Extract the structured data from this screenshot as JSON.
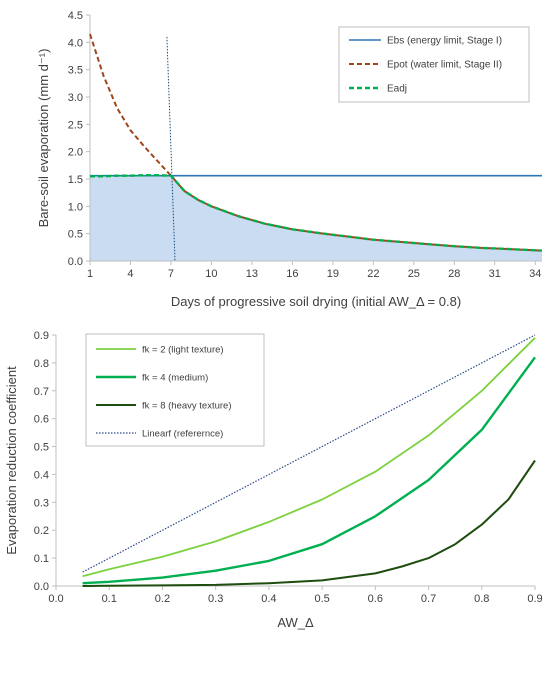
{
  "chart_data": [
    {
      "type": "line",
      "xlabel": "Days of progressive soil drying (initial AW_Δ = 0.8)",
      "ylabel": "Bare-soil evaporation (mm d⁻¹)",
      "xlim": [
        1,
        34.5
      ],
      "ylim": [
        0,
        4.5
      ],
      "x_ticks": [
        1,
        4,
        7,
        10,
        13,
        16,
        19,
        22,
        25,
        28,
        31,
        34
      ],
      "y_ticks": [
        0.0,
        0.5,
        1.0,
        1.5,
        2.0,
        2.5,
        3.0,
        3.5,
        4.0,
        4.5
      ],
      "legend_position": "top-right",
      "grid": false,
      "series": [
        {
          "name": "Ebs (energy limit, Stage I)",
          "color": "#2e75b6",
          "style": "solid",
          "x": [
            1,
            34.5
          ],
          "y": [
            1.56,
            1.56
          ]
        },
        {
          "name": "Epot (water limit, Stage II)",
          "color": "#a0461c",
          "style": "dashed",
          "x": [
            1,
            2,
            3,
            4,
            5,
            6,
            7,
            8,
            9,
            10,
            12,
            14,
            16,
            18,
            20,
            22,
            24,
            26,
            28,
            30,
            32,
            34.5
          ],
          "y": [
            4.15,
            3.39,
            2.8,
            2.39,
            2.1,
            1.83,
            1.56,
            1.28,
            1.12,
            1.0,
            0.82,
            0.68,
            0.58,
            0.51,
            0.45,
            0.39,
            0.35,
            0.31,
            0.27,
            0.24,
            0.22,
            0.19
          ]
        },
        {
          "name": "Eadj",
          "color": "#00b050",
          "style": "dashed",
          "x": [
            1,
            2,
            3,
            4,
            5,
            6,
            7,
            8,
            9,
            10,
            12,
            14,
            16,
            18,
            20,
            22,
            24,
            26,
            28,
            30,
            32,
            34.5
          ],
          "y": [
            1.55,
            1.55,
            1.56,
            1.56,
            1.57,
            1.57,
            1.56,
            1.28,
            1.12,
            1.0,
            0.82,
            0.68,
            0.58,
            0.51,
            0.45,
            0.39,
            0.35,
            0.31,
            0.27,
            0.24,
            0.22,
            0.19
          ]
        }
      ],
      "vertical_marker": {
        "x_top": 6.7,
        "x_bottom": 7.3,
        "y_top": 4.1,
        "color": "#1f4e79",
        "style": "dotted"
      },
      "shaded_area": {
        "under": "Eadj",
        "color": "#c9dcf2"
      }
    },
    {
      "type": "line",
      "xlabel": "AW_Δ",
      "ylabel": "Evaporation reduction coefficient",
      "xlim": [
        0,
        0.9
      ],
      "ylim": [
        0,
        0.9
      ],
      "x_ticks": [
        0,
        0.1,
        0.2,
        0.3,
        0.4,
        0.5,
        0.6,
        0.7,
        0.8,
        0.9
      ],
      "y_ticks": [
        0.0,
        0.1,
        0.2,
        0.3,
        0.4,
        0.5,
        0.6,
        0.7,
        0.8,
        0.9
      ],
      "legend_position": "top-left",
      "grid": false,
      "series": [
        {
          "name": "fk = 2 (light texture)",
          "color": "#7dd13f",
          "style": "solid",
          "x": [
            0.05,
            0.1,
            0.2,
            0.3,
            0.4,
            0.5,
            0.6,
            0.7,
            0.8,
            0.9
          ],
          "y": [
            0.035,
            0.06,
            0.105,
            0.16,
            0.23,
            0.31,
            0.41,
            0.54,
            0.7,
            0.89
          ]
        },
        {
          "name": "fk = 4 (medium)",
          "color": "#00b050",
          "style": "solid",
          "x": [
            0.05,
            0.1,
            0.2,
            0.3,
            0.4,
            0.5,
            0.6,
            0.7,
            0.8,
            0.9
          ],
          "y": [
            0.01,
            0.015,
            0.03,
            0.055,
            0.09,
            0.15,
            0.25,
            0.38,
            0.56,
            0.82
          ]
        },
        {
          "name": "fk = 8 (heavy texture)",
          "color": "#1e4d0f",
          "style": "solid",
          "x": [
            0.05,
            0.1,
            0.2,
            0.3,
            0.4,
            0.5,
            0.6,
            0.65,
            0.7,
            0.75,
            0.8,
            0.85,
            0.9
          ],
          "y": [
            0.0,
            0.001,
            0.002,
            0.004,
            0.01,
            0.02,
            0.045,
            0.07,
            0.1,
            0.15,
            0.22,
            0.31,
            0.45
          ]
        },
        {
          "name": "Linearf (referernce)",
          "color": "#2e4a8c",
          "style": "dotted",
          "x": [
            0.05,
            0.9
          ],
          "y": [
            0.05,
            0.9
          ]
        }
      ]
    }
  ]
}
